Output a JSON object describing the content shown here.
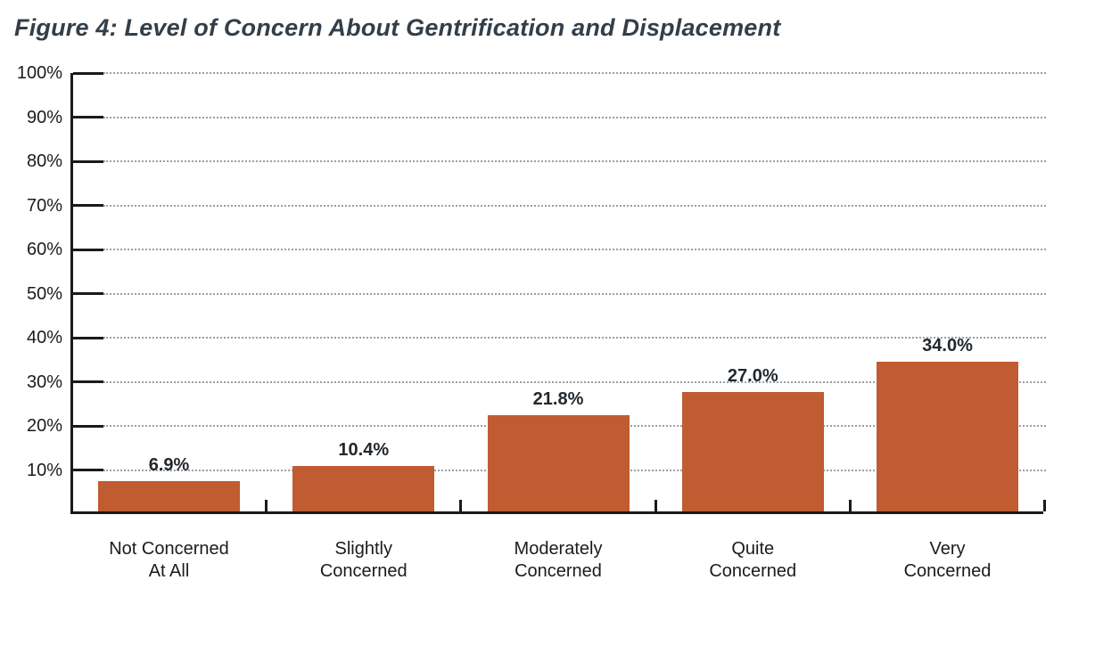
{
  "title": "Figure 4: Level of Concern About Gentrification and Displacement",
  "chart_data": {
    "type": "bar",
    "title": "Figure 4: Level of Concern About Gentrification and Displacement",
    "categories": [
      "Not Concerned\nAt All",
      "Slightly\nConcerned",
      "Moderately\nConcerned",
      "Quite\nConcerned",
      "Very\nConcerned"
    ],
    "values": [
      6.9,
      10.4,
      21.8,
      27.0,
      34.0
    ],
    "value_labels": [
      "6.9%",
      "10.4%",
      "21.8%",
      "27.0%",
      "34.0%"
    ],
    "xlabel": "",
    "ylabel": "",
    "ylim": [
      0,
      100
    ],
    "ytick_values": [
      10,
      20,
      30,
      40,
      50,
      60,
      70,
      80,
      90,
      100
    ],
    "ytick_labels": [
      "10%",
      "20%",
      "30%",
      "40%",
      "50%",
      "60%",
      "70%",
      "80%",
      "90%",
      "100%"
    ],
    "grid": "horizontal-dotted",
    "legend": "none",
    "bar_color": "#C05C31",
    "axis_color": "#1a1a1a",
    "grid_color": "#9b9fa3",
    "title_color": "#333e48",
    "label_color": "#1b1b1b"
  }
}
